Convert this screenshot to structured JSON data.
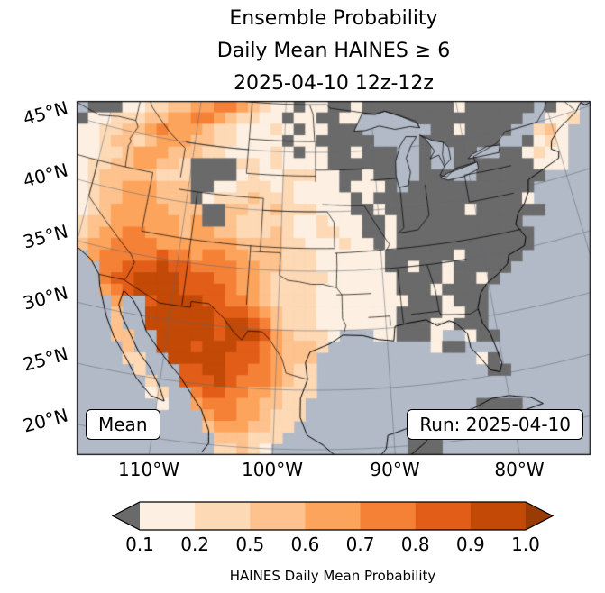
{
  "title": {
    "line1": "Ensemble Probability",
    "line2": "Daily Mean HAINES ≥ 6",
    "line3": "2025-04-10 12z-12z"
  },
  "map": {
    "yticks": [
      "45°N",
      "40°N",
      "35°N",
      "30°N",
      "25°N",
      "20°N"
    ],
    "xticks": [
      "110°W",
      "100°W",
      "90°W",
      "80°W"
    ],
    "corner_left": "Mean",
    "corner_right": "Run: 2025-04-10",
    "colors": {
      "water": "#b2bac7",
      "land_below_threshold": "#6a6a6a",
      "frame": "#000000"
    },
    "grid": {
      "palette": {
        "g": "#6a6a6a",
        "a": "#fdf0e2",
        "b": "#fdd9b5",
        "c": "#fdc28d",
        "d": "#fda45c",
        "e": "#f58137",
        "f": "#e25d18",
        "h": "#c24906"
      },
      "bins": {
        "g": "< 0.1",
        "a": "0.1-0.2",
        "b": "0.2-0.5",
        "c": "0.5-0.6",
        "d": "0.6-0.7",
        "e": "0.7-0.8",
        "f": "0.8-0.9",
        "h": "0.9-1.0"
      },
      "rows": [
        ".gggaabbccddeedcbaagaaggaggggggggagggggg.gaa.",
        "gaabbbccddeedcbbaagaaggaagggggggggggggg..aab.",
        "aabbccdedddcbbaaabagaaggg......ggagggg..bca..",
        "aabccbcdddccbbaaaagaaggggg....ggggggg..gaba..",
        "aabbcdddcccbbaaaabagaaggaggg..g..gg..ggabaa..",
        "abbccddccbggggbbabaaaagggggg..g..gggggggaaa..",
        "abcccccbbbggggabaabbbaaggagg..ggg..gggggg....",
        "abccdddcccggaabbbabaaaagaaag.ggggggggggg.....",
        "abccdddcccgabbbcbbbaaaaagaggggggggggggga.....",
        "abcdddddcccggccbbcbbbaaaggagggggggagggggg....",
        "bccddddddcdggcbbbbbaabaaaggaggggggggggg......",
        "bcddeedddcddccbbbcbaabbaaggagggggggggggg.....",
        "cddeeeedddddddccccbbaaabaagagggggggggggg.....",
        ".deeeeefeedeeddcccbbbaaaaaaggggggaggggg......",
        "..eefffhffeeeeddccbbbaaaaaaggaggaggggg.......",
        "..effhhhhfffeeddcbbbbbaaaaaaggggaggag........",
        "..defhhhhffffeddcbbbbaaaaaaagggagggg.........",
        "...d..fhhhhffeedcbbbbaaaaaaaagggaggg.........",
        "...c..hhhhhhfffedcbbbaaaaaaaggggaagg.........",
        "...c..hhhhhhfhhfecbbbaaaaaaagggaaggg.........",
        "...cc..hhhhhfhhhfdcbbba...aaggga..agg........",
        "....c..hhhfhhhffedcccb.........agg...........",
        "....bb..hhhhhfffedccc..............ag........",
        ".....b...ffhhffeedcbb...............gg.......",
        "......b..fffhfeeedcbb........................",
        "......ab..effeeddcbbb........................",
        ".......a..deeeddccbb...............gggg......",
        "...........deeddcbbb.........................",
        "...........cdddccbb..........................",
        "............cccbbb...........ggg.............",
        "............bbcba............ggg............."
      ]
    }
  },
  "colorbar": {
    "ticks": [
      "0.1",
      "0.2",
      "0.5",
      "0.6",
      "0.7",
      "0.8",
      "0.9",
      "1.0"
    ],
    "segment_colors": [
      "#fdf0e2",
      "#fdd9b5",
      "#fdc28d",
      "#fda45c",
      "#f58137",
      "#e25d18",
      "#c24906"
    ],
    "under_color": "#6a6a6a",
    "over_color": "#993b04",
    "label": "HAINES Daily Mean Probability"
  }
}
